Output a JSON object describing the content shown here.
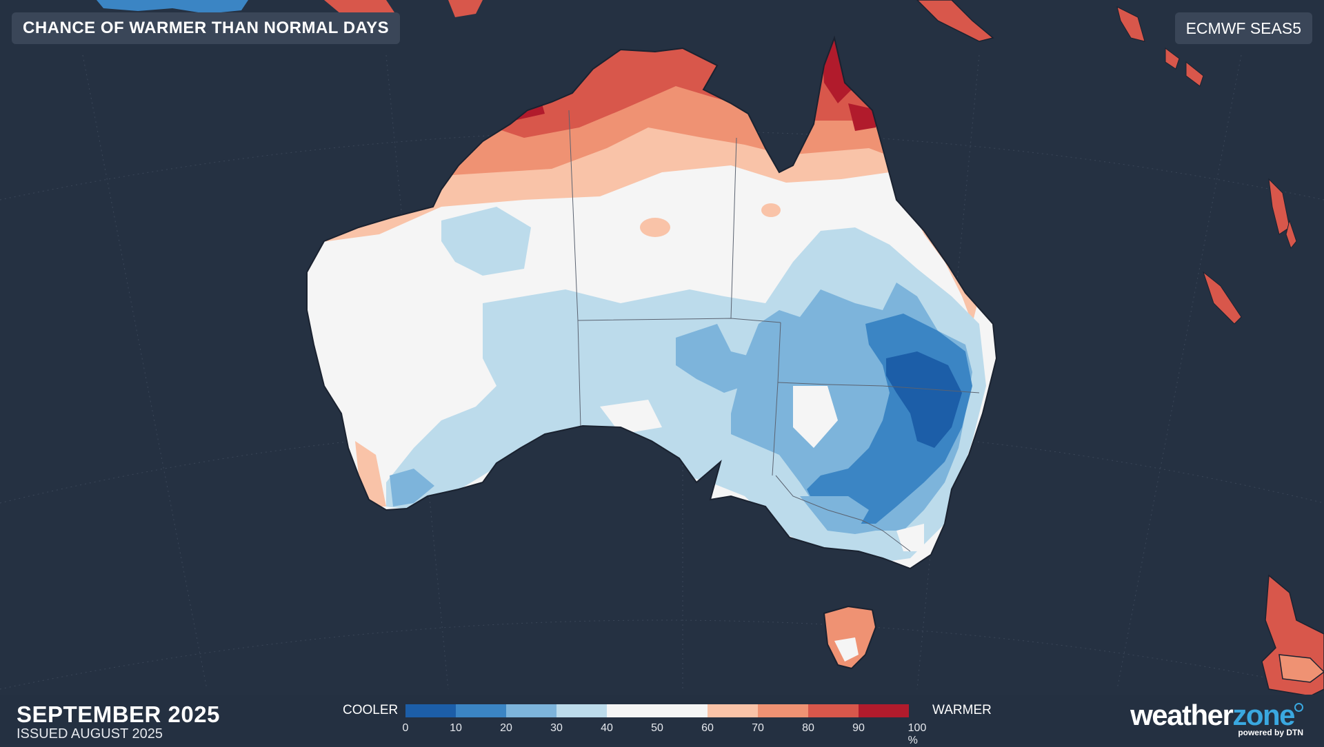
{
  "header": {
    "title": "CHANCE OF WARMER THAN NORMAL DAYS",
    "model": "ECMWF SEAS5"
  },
  "footer": {
    "period": "SEPTEMBER 2025",
    "issued": "ISSUED AUGUST 2025"
  },
  "legend": {
    "left_label": "COOLER",
    "right_label": "WARMER",
    "ticks": [
      "0",
      "10",
      "20",
      "30",
      "40",
      "50",
      "60",
      "70",
      "80",
      "90",
      "100 %"
    ],
    "colors": [
      "#1c5ea8",
      "#3b85c4",
      "#7db4db",
      "#bcdbeb",
      "#f5f5f5",
      "#f5f5f5",
      "#f9c3a8",
      "#ef9273",
      "#d8574b",
      "#b11b2c"
    ]
  },
  "logo": {
    "word_a": "weather",
    "word_b": "zone",
    "tagline": "powered by DTN"
  },
  "map": {
    "region": "Australia",
    "ocean_color": "#253142",
    "colors": {
      "cool_dark": "#1c5ea8",
      "cool_mid": "#3b85c4",
      "cool_light": "#7db4db",
      "cool_pale": "#bcdbeb",
      "neutral": "#f5f5f5",
      "warm_pale": "#f9c3a8",
      "warm_light": "#ef9273",
      "warm_mid": "#d8574b",
      "warm_dark": "#b11b2c"
    }
  }
}
